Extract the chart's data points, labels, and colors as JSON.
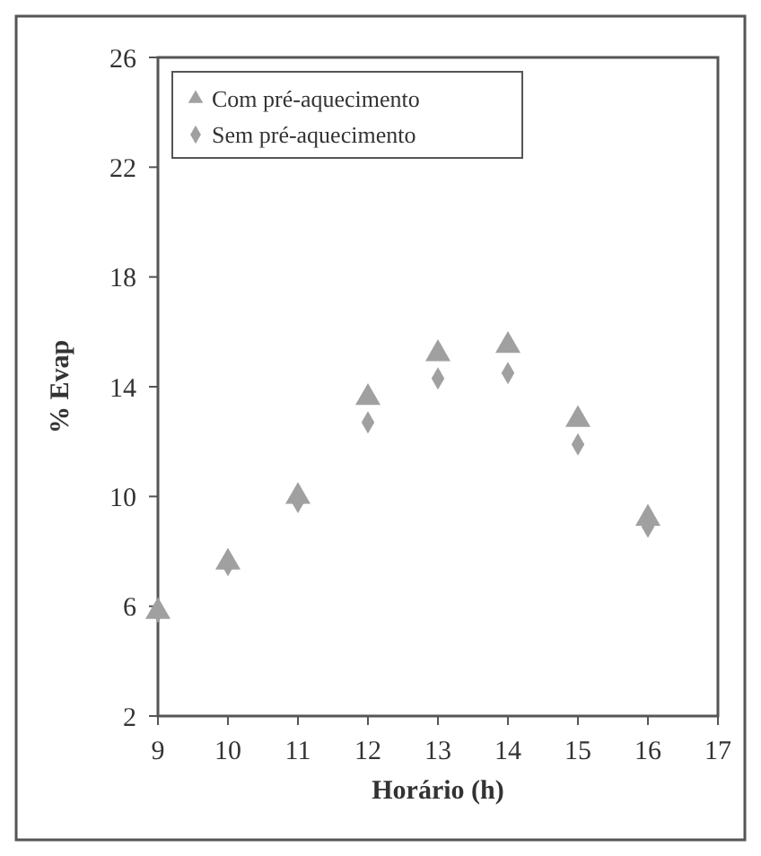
{
  "chart_data": {
    "type": "scatter",
    "xlabel": "Horário (h)",
    "ylabel": "% Evap",
    "x": [
      9,
      10,
      11,
      12,
      13,
      14,
      15,
      16
    ],
    "series": [
      {
        "name": "Com pré-aquecimento",
        "color": "#a0a0a0",
        "marker": "triangle",
        "values": [
          5.8,
          7.6,
          10.0,
          13.6,
          15.2,
          15.5,
          12.8,
          9.2
        ]
      },
      {
        "name": "Sem pré-aquecimento",
        "color": "#a0a0a0",
        "marker": "diamond",
        "values": [
          5.8,
          7.5,
          9.8,
          12.7,
          14.3,
          14.5,
          11.9,
          8.9
        ]
      }
    ],
    "xlim": [
      9,
      17
    ],
    "xticks": [
      9,
      10,
      11,
      12,
      13,
      14,
      15,
      16,
      17
    ],
    "ylim": [
      2,
      26
    ],
    "yticks": [
      2,
      6,
      10,
      14,
      18,
      22,
      26
    ],
    "grid": false,
    "legend": "top left"
  }
}
